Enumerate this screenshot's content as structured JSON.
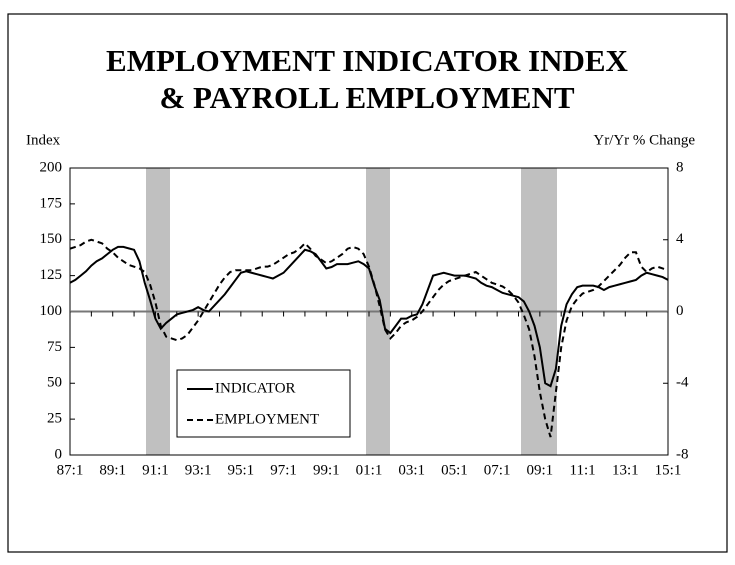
{
  "chart_data": {
    "type": "line",
    "title": [
      "EMPLOYMENT INDICATOR INDEX",
      "& PAYROLL EMPLOYMENT"
    ],
    "ylabel": "Index",
    "y2label": "Yr/Yr % Change",
    "categories": [
      "87:1",
      null,
      null,
      null,
      null,
      null,
      null,
      null,
      "89:1",
      null,
      null,
      null,
      null,
      null,
      null,
      null,
      "91:1",
      null,
      null,
      null,
      null,
      null,
      null,
      null,
      "93:1",
      null,
      null,
      null,
      null,
      null,
      null,
      null,
      "95:1",
      null,
      null,
      null,
      null,
      null,
      null,
      null,
      "97:1",
      null,
      null,
      null,
      null,
      null,
      null,
      null,
      "99:1",
      null,
      null,
      null,
      null,
      null,
      null,
      null,
      "01:1",
      null,
      null,
      null,
      null,
      null,
      null,
      null,
      "03:1",
      null,
      null,
      null,
      null,
      null,
      null,
      null,
      "05:1",
      null,
      null,
      null,
      null,
      null,
      null,
      null,
      "07:1",
      null,
      null,
      null,
      null,
      null,
      null,
      null,
      "09:1",
      null,
      null,
      null,
      null,
      null,
      null,
      null,
      "11:1",
      null,
      null,
      null,
      null,
      null,
      null,
      null,
      "13:1",
      null,
      null,
      null,
      null,
      null,
      null,
      null,
      "15:1"
    ],
    "series": [
      {
        "name": "INDICATOR",
        "color": "#000000",
        "linestyle": "solid",
        "values": [
          120,
          122,
          125,
          128,
          132,
          135,
          137,
          140,
          143,
          145,
          145,
          144,
          143,
          135,
          120,
          108,
          95,
          88,
          92,
          95,
          98,
          99,
          100,
          101,
          103,
          101,
          100,
          104,
          108,
          112,
          117,
          122,
          127,
          128,
          127,
          126,
          125,
          124,
          123,
          125,
          127,
          131,
          135,
          139,
          143,
          142,
          140,
          135,
          130,
          131,
          133,
          133,
          133,
          134,
          135,
          133,
          130,
          118,
          108,
          88,
          85,
          90,
          95,
          95,
          97,
          98,
          105,
          115,
          125,
          126,
          127,
          126,
          125,
          125,
          125,
          124,
          123,
          120,
          118,
          117,
          115,
          113,
          112,
          111,
          110,
          107,
          100,
          90,
          75,
          50,
          48,
          60,
          90,
          105,
          112,
          117,
          118,
          118,
          118,
          117,
          115,
          117,
          118,
          119,
          120,
          121,
          122,
          125,
          127,
          126,
          125,
          124,
          122
        ]
      },
      {
        "name": "EMPLOYMENT",
        "color": "#000000",
        "linestyle": "dashed",
        "axis": "y2",
        "values": [
          3.5,
          3.6,
          3.7,
          3.9,
          4.0,
          3.9,
          3.8,
          3.5,
          3.3,
          3.0,
          2.8,
          2.6,
          2.5,
          2.4,
          2.2,
          1.5,
          0.5,
          -0.8,
          -1.4,
          -1.5,
          -1.6,
          -1.5,
          -1.3,
          -0.9,
          -0.5,
          0,
          0.5,
          1.0,
          1.5,
          1.9,
          2.2,
          2.3,
          2.3,
          2.3,
          2.3,
          2.4,
          2.5,
          2.5,
          2.6,
          2.8,
          3.0,
          3.2,
          3.3,
          3.5,
          3.8,
          3.5,
          3.1,
          2.9,
          2.7,
          2.8,
          3.0,
          3.2,
          3.5,
          3.6,
          3.5,
          3.2,
          2.5,
          1.5,
          0.3,
          -1.0,
          -1.5,
          -1.2,
          -0.8,
          -0.6,
          -0.5,
          -0.3,
          0,
          0.4,
          0.8,
          1.2,
          1.5,
          1.7,
          1.8,
          1.9,
          2.0,
          2.1,
          2.2,
          2.0,
          1.8,
          1.6,
          1.5,
          1.4,
          1.2,
          0.9,
          0.5,
          -0.2,
          -1.0,
          -2.5,
          -4.5,
          -6.0,
          -7.0,
          -4.5,
          -2.0,
          -0.5,
          0.3,
          0.7,
          1.0,
          1.1,
          1.2,
          1.4,
          1.7,
          2.0,
          2.3,
          2.6,
          3.0,
          3.3,
          3.3,
          2.5,
          2.2,
          2.4,
          2.5,
          2.4,
          2.3
        ]
      }
    ],
    "ylim": [
      0,
      200
    ],
    "yticks": [
      0,
      25,
      50,
      75,
      100,
      125,
      150,
      175,
      200
    ],
    "y2lim": [
      -8,
      8
    ],
    "y2ticks": [
      -8,
      -4,
      0,
      4,
      8
    ],
    "legend": "lower left"
  }
}
